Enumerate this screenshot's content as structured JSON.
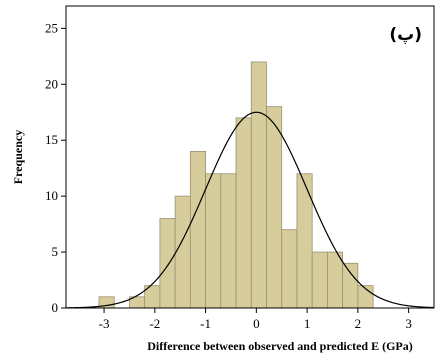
{
  "chart_data": {
    "type": "bar",
    "title": "",
    "panel_label": "(پ)",
    "xlabel": "Difference between observed and predicted E (GPa)",
    "ylabel": "Frequency",
    "xlim": [
      -3.75,
      3.5
    ],
    "ylim": [
      0,
      27
    ],
    "x_ticks": [
      -3,
      -2,
      -1,
      0,
      1,
      2,
      3
    ],
    "y_ticks": [
      0,
      5,
      10,
      15,
      20,
      25
    ],
    "bin_width": 0.3,
    "bins": [
      {
        "x0": -3.1,
        "x1": -2.8,
        "count": 1
      },
      {
        "x0": -2.8,
        "x1": -2.5,
        "count": 0
      },
      {
        "x0": -2.5,
        "x1": -2.2,
        "count": 1
      },
      {
        "x0": -2.2,
        "x1": -1.9,
        "count": 2
      },
      {
        "x0": -1.9,
        "x1": -1.6,
        "count": 8
      },
      {
        "x0": -1.6,
        "x1": -1.3,
        "count": 10
      },
      {
        "x0": -1.3,
        "x1": -1.0,
        "count": 14
      },
      {
        "x0": -1.0,
        "x1": -0.7,
        "count": 12
      },
      {
        "x0": -0.7,
        "x1": -0.4,
        "count": 12
      },
      {
        "x0": -0.4,
        "x1": -0.1,
        "count": 17
      },
      {
        "x0": -0.1,
        "x1": 0.2,
        "count": 22
      },
      {
        "x0": 0.2,
        "x1": 0.5,
        "count": 18
      },
      {
        "x0": 0.5,
        "x1": 0.8,
        "count": 7
      },
      {
        "x0": 0.8,
        "x1": 1.1,
        "count": 12
      },
      {
        "x0": 1.1,
        "x1": 1.4,
        "count": 5
      },
      {
        "x0": 1.4,
        "x1": 1.7,
        "count": 5
      },
      {
        "x0": 1.7,
        "x1": 2.0,
        "count": 4
      },
      {
        "x0": 2.0,
        "x1": 2.3,
        "count": 2
      }
    ],
    "normal_curve": {
      "mean": 0.0,
      "sd": 1.0,
      "peak": 17.5
    },
    "grid": false,
    "colors": {
      "bar_fill": "#d7cc9c",
      "bar_stroke": "#9a9170",
      "curve": "#000000",
      "axis": "#000000"
    }
  }
}
